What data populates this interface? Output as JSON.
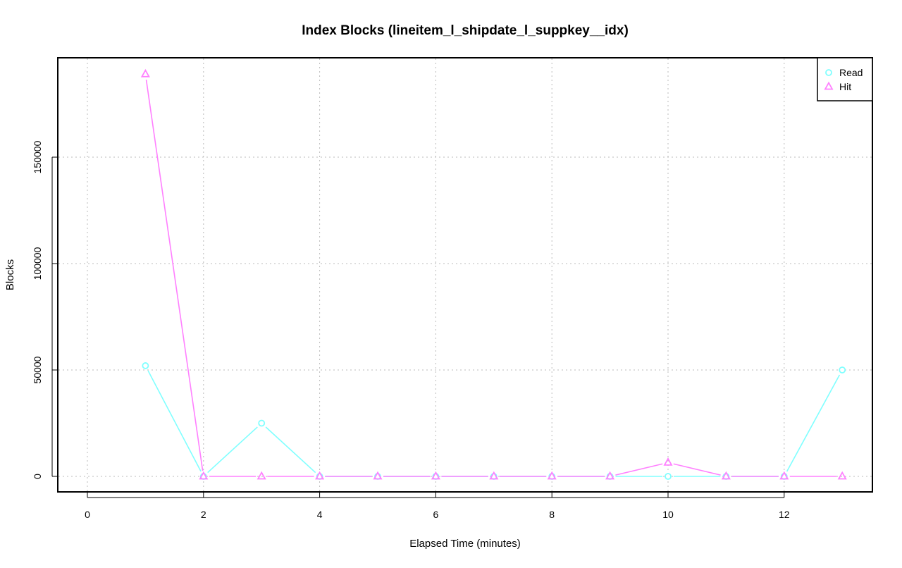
{
  "chart_data": {
    "type": "line",
    "title": "Index Blocks (lineitem_l_shipdate_l_suppkey__idx)",
    "xlabel": "Elapsed Time (minutes)",
    "ylabel": "Blocks",
    "xlim": [
      0,
      13
    ],
    "ylim": [
      -7500,
      197000
    ],
    "xticks": [
      0,
      2,
      4,
      6,
      8,
      10,
      12
    ],
    "yticks": [
      0,
      50000,
      100000,
      150000
    ],
    "grid": true,
    "legend_position": "top-right",
    "x": [
      1,
      2,
      3,
      4,
      5,
      6,
      7,
      8,
      9,
      10,
      11,
      12,
      13
    ],
    "series": [
      {
        "name": "Read",
        "color": "#80ffff",
        "marker": "circle",
        "values": [
          52000,
          0,
          25000,
          0,
          0,
          0,
          0,
          0,
          0,
          0,
          0,
          0,
          50000
        ]
      },
      {
        "name": "Hit",
        "color": "#ff80ff",
        "marker": "triangle",
        "values": [
          189000,
          0,
          0,
          0,
          0,
          0,
          0,
          0,
          0,
          6500,
          0,
          0,
          0
        ]
      }
    ]
  }
}
